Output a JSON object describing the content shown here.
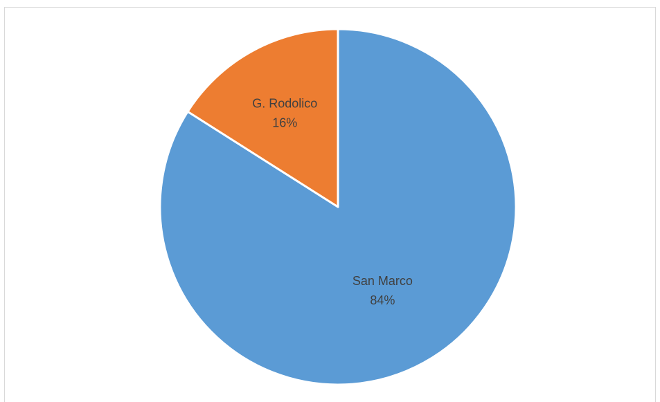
{
  "chart_data": {
    "type": "pie",
    "title": "",
    "categories": [
      "San Marco",
      "G. Rodolico"
    ],
    "values": [
      84,
      16
    ],
    "value_labels": [
      "84%",
      "16%"
    ],
    "unit": "%",
    "colors": [
      "#5b9bd5",
      "#ed7d31"
    ],
    "slice_border_color": "#ffffff",
    "start_angle_deg": 0,
    "direction": "clockwise",
    "legend": "none",
    "data_labels": "inside"
  }
}
